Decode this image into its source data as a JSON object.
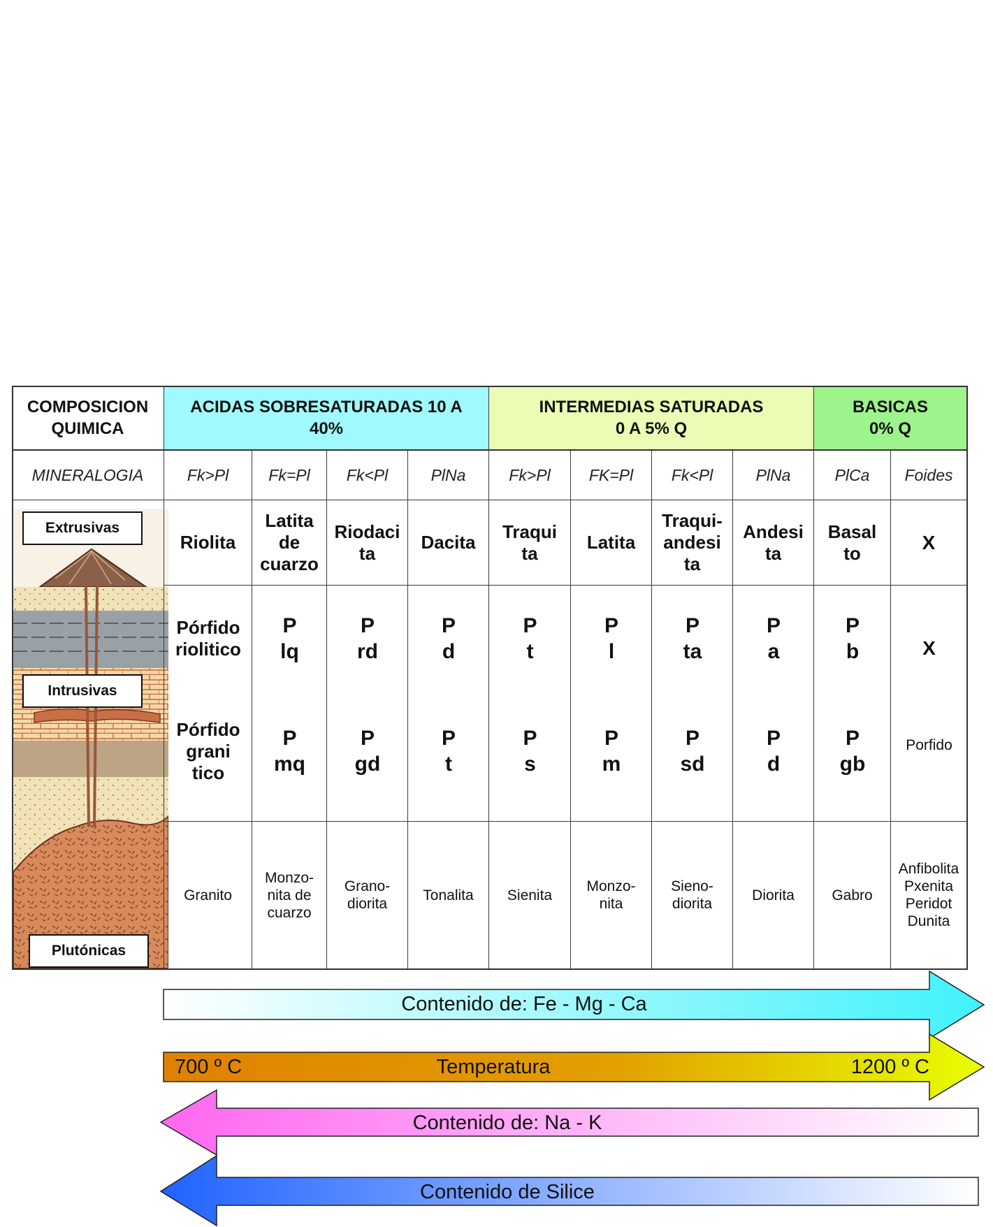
{
  "header": {
    "composicion": "COMPOSICION\nQUIMICA",
    "acidas": "ACIDAS SOBRESATURADAS 10 A\n40%",
    "intermedias": "INTERMEDIAS SATURADAS\n0 A 5% Q",
    "basicas": "BASICAS\n0% Q"
  },
  "mineralogia": {
    "label": "MINERALOGIA",
    "values": [
      "Fk>Pl",
      "Fk=Pl",
      "Fk<Pl",
      "PlNa",
      "Fk>Pl",
      "FK=Pl",
      "Fk<Pl",
      "PlNa",
      "PlCa",
      "Foides"
    ]
  },
  "labels": {
    "extrusivas": "Extrusivas",
    "intrusivas": "Intrusivas",
    "plutonicas": "Plutónicas"
  },
  "extrusivas": [
    "Riolita",
    "Latita\nde\ncuarzo",
    "Riodaci\nta",
    "Dacita",
    "Traqui\nta",
    "Latita",
    "Traqui-\nandesi\nta",
    "Andesi\nta",
    "Basal\nto",
    "X"
  ],
  "porfido_upper": [
    "Pórfido\nriolitico",
    "P\nlq",
    "P\nrd",
    "P\nd",
    "P\nt",
    "P\nl",
    "P\nta",
    "P\na",
    "P\nb",
    "X"
  ],
  "porfido_lower": [
    "Pórfido\ngrani\ntico",
    "P\nmq",
    "P\ngd",
    "P\nt",
    "P\ns",
    "P\nm",
    "P\nsd",
    "P\nd",
    "P\ngb",
    "Porfido"
  ],
  "plutonicas": [
    "Granito",
    "Monzo-\nnita de\ncuarzo",
    "Grano-\ndiorita",
    "Tonalita",
    "Sienita",
    "Monzo-\nnita",
    "Sieno-\ndiorita",
    "Diorita",
    "Gabro",
    "Anfibolita\nPxenita\nPeridot\nDunita"
  ],
  "arrows": {
    "femgca": "Contenido de: Fe - Mg - Ca",
    "temperatura": "Temperatura",
    "temp_low": "700 º C",
    "temp_high": "1200 º C",
    "nak": "Contenido de: Na - K",
    "silice": "Contenido de  Silice"
  },
  "colors": {
    "acidas": "#9ff9fd",
    "intermedias": "#ebfdb4",
    "basicas": "#9ef48c",
    "femgca_arrow": "#40f2fb",
    "temp_arrow_start": "#df8100",
    "temp_arrow_end": "#e8ff00",
    "nak_arrow": "#ff66f0",
    "silice_arrow": "#1f63ff"
  }
}
